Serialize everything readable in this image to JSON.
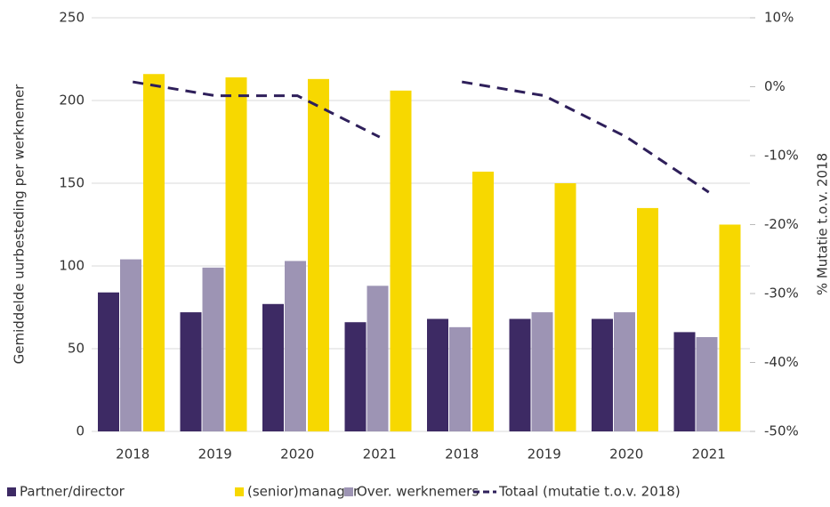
{
  "chart_data": {
    "type": "bar",
    "y_label": "Gemiddelde uurbesteding per werknemer",
    "y2_label": "% Mutatie t.o.v. 2018",
    "categories": [
      "2018",
      "2019",
      "2020",
      "2021",
      "2018",
      "2019",
      "2020",
      "2021"
    ],
    "series": [
      {
        "name": "Partner/director",
        "color": "#3d2a64",
        "values": [
          84,
          72,
          77,
          66,
          68,
          68,
          68,
          60
        ]
      },
      {
        "name": "(senior)manager",
        "color": "#f7d800",
        "values": [
          216,
          214,
          213,
          206,
          157,
          150,
          135,
          125
        ]
      },
      {
        "name": "Over. werknemers",
        "color": "#9d94b4",
        "values": [
          104,
          99,
          103,
          88,
          63,
          72,
          72,
          57
        ]
      },
      {
        "name": "Totaal (mutatie t.o.v. 2018)",
        "color": "#2e1f5a",
        "type": "line",
        "dashed": true,
        "axis": "y2",
        "values": [
          0.7,
          -1.3,
          -1.3,
          -7.3,
          0.7,
          -1.3,
          -7.3,
          -15.3
        ]
      }
    ],
    "line_break_after": [
      3
    ],
    "ylim": [
      0,
      250
    ],
    "yticks": [
      0,
      50,
      100,
      150,
      200,
      250
    ],
    "y2lim": [
      -50,
      10
    ],
    "y2ticks": [
      {
        "value": -50,
        "label": "-50%"
      },
      {
        "value": -40,
        "label": "-40%"
      },
      {
        "value": -30,
        "label": "-30%"
      },
      {
        "value": -20,
        "label": "-20%"
      },
      {
        "value": -10,
        "label": "-10%"
      },
      {
        "value": 0,
        "label": "0%"
      },
      {
        "value": 10,
        "label": "10%"
      }
    ],
    "grid": true,
    "legend": "bottom"
  }
}
